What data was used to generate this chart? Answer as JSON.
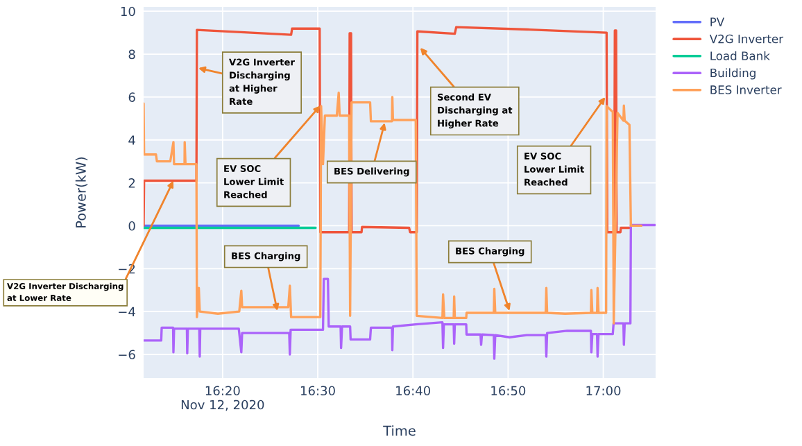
{
  "chart_data": {
    "type": "line",
    "xlabel": "Time",
    "ylabel": "Power(kW)",
    "grid": true,
    "legend": "top right",
    "line_style": "solid",
    "marker": "none",
    "xlim": [
      "2020-11-12T16:11:42",
      "2020-11-12T17:05:30"
    ],
    "xticks": [
      {
        "value": "2020-11-12T16:20",
        "label": "16:20\nNov 12, 2020"
      },
      {
        "value": "2020-11-12T16:30",
        "label": "16:30"
      },
      {
        "value": "2020-11-12T16:40",
        "label": "16:40"
      },
      {
        "value": "2020-11-12T16:50",
        "label": "16:50"
      },
      {
        "value": "2020-11-12T17:00",
        "label": "17:00"
      }
    ],
    "ylim": [
      -7.1,
      10.2
    ],
    "yticks": [
      {
        "value": -6,
        "label": "−6"
      },
      {
        "value": -4,
        "label": "−4"
      },
      {
        "value": -2,
        "label": "−2"
      },
      0,
      2,
      4,
      6,
      8,
      10
    ],
    "series": [
      {
        "name": "PV",
        "color": "#636efa",
        "x": [
          "2020-11-12T16:11:42",
          "2020-11-12T16:28:00"
        ],
        "values": [
          0,
          0
        ]
      },
      {
        "name": "V2G Inverter",
        "color": "#ef553b",
        "x": [
          "2020-11-12T16:11:42",
          "2020-11-12T16:11:45",
          "2020-11-12T16:17:15",
          "2020-11-12T16:17:18",
          "2020-11-12T16:23:00",
          "2020-11-12T16:27:12",
          "2020-11-12T16:27:18",
          "2020-11-12T16:30:12",
          "2020-11-12T16:30:16",
          "2020-11-12T16:33:18",
          "2020-11-12T16:33:21",
          "2020-11-12T16:33:30",
          "2020-11-12T16:33:33",
          "2020-11-12T16:34:36",
          "2020-11-12T16:34:39",
          "2020-11-12T16:39:36",
          "2020-11-12T16:39:42",
          "2020-11-12T16:40:24",
          "2020-11-12T16:40:28",
          "2020-11-12T16:44:24",
          "2020-11-12T16:44:33",
          "2020-11-12T16:52:00",
          "2020-11-12T17:00:21",
          "2020-11-12T17:00:25",
          "2020-11-12T17:01:09",
          "2020-11-12T17:01:13",
          "2020-11-12T17:01:21",
          "2020-11-12T17:01:24",
          "2020-11-12T17:01:48",
          "2020-11-12T17:01:51",
          "2020-11-12T17:02:45"
        ],
        "values": [
          0,
          2.1,
          2.1,
          9.13,
          9.0,
          8.9,
          9.19,
          9.19,
          -0.3,
          -0.3,
          8.97,
          8.97,
          -0.3,
          -0.3,
          -0.06,
          -0.1,
          -0.3,
          -0.3,
          9.06,
          8.95,
          9.26,
          9.15,
          9.0,
          -0.3,
          -0.3,
          9.1,
          9.1,
          -0.3,
          -0.3,
          -0.1,
          -0.1
        ]
      },
      {
        "name": "Load Bank",
        "color": "#00cc96",
        "x": [
          "2020-11-12T16:11:42",
          "2020-11-12T16:29:46"
        ],
        "values": [
          -0.1,
          -0.1
        ]
      },
      {
        "name": "Building",
        "color": "#ab63fa",
        "x": [
          "2020-11-12T16:11:42",
          "2020-11-12T16:13:33",
          "2020-11-12T16:13:36",
          "2020-11-12T16:14:48",
          "2020-11-12T16:14:50",
          "2020-11-12T16:14:54",
          "2020-11-12T16:16:15",
          "2020-11-12T16:16:17",
          "2020-11-12T16:16:21",
          "2020-11-12T16:17:33",
          "2020-11-12T16:17:36",
          "2020-11-12T16:17:39",
          "2020-11-12T16:21:42",
          "2020-11-12T16:21:45",
          "2020-11-12T16:21:58",
          "2020-11-12T16:22:03",
          "2020-11-12T16:27:00",
          "2020-11-12T16:27:04",
          "2020-11-12T16:27:09",
          "2020-11-12T16:30:33",
          "2020-11-12T16:30:38",
          "2020-11-12T16:31:04",
          "2020-11-12T16:31:09",
          "2020-11-12T16:32:24",
          "2020-11-12T16:32:27",
          "2020-11-12T16:32:33",
          "2020-11-12T16:33:24",
          "2020-11-12T16:33:27",
          "2020-11-12T16:35:30",
          "2020-11-12T16:35:35",
          "2020-11-12T16:37:48",
          "2020-11-12T16:37:50",
          "2020-11-12T16:37:54",
          "2020-11-12T16:40:18",
          "2020-11-12T16:43:06",
          "2020-11-12T16:43:10",
          "2020-11-12T16:43:15",
          "2020-11-12T16:44:17",
          "2020-11-12T16:44:20",
          "2020-11-12T16:44:24",
          "2020-11-12T16:45:36",
          "2020-11-12T16:45:38",
          "2020-11-12T16:47:06",
          "2020-11-12T16:47:10",
          "2020-11-12T16:47:15",
          "2020-11-12T16:48:30",
          "2020-11-12T16:48:33",
          "2020-11-12T16:48:39",
          "2020-11-12T16:50:09",
          "2020-11-12T16:51:58",
          "2020-11-12T16:53:57",
          "2020-11-12T16:54:01",
          "2020-11-12T16:54:06",
          "2020-11-12T16:56:12",
          "2020-11-12T16:58:42",
          "2020-11-12T16:58:45",
          "2020-11-12T16:58:51",
          "2020-11-12T16:59:21",
          "2020-11-12T16:59:24",
          "2020-11-12T16:59:30",
          "2020-11-12T17:01:00",
          "2020-11-12T17:01:05",
          "2020-11-12T17:02:07",
          "2020-11-12T17:02:10",
          "2020-11-12T17:02:15",
          "2020-11-12T17:02:51",
          "2020-11-12T17:02:54",
          "2020-11-12T17:05:27"
        ],
        "values": [
          -5.35,
          -5.35,
          -4.75,
          -4.75,
          -5.9,
          -4.8,
          -4.8,
          -5.95,
          -4.8,
          -4.8,
          -6.1,
          -4.8,
          -4.8,
          -5.0,
          -5.9,
          -5.0,
          -5.0,
          -6.0,
          -4.85,
          -4.85,
          -2.48,
          -2.48,
          -4.7,
          -4.7,
          -5.7,
          -4.7,
          -4.7,
          -5.3,
          -5.3,
          -4.75,
          -4.75,
          -5.8,
          -4.7,
          -4.6,
          -4.5,
          -5.7,
          -4.6,
          -4.6,
          -5.5,
          -4.6,
          -4.6,
          -5.07,
          -5.07,
          -5.55,
          -5.07,
          -5.1,
          -6.2,
          -5.1,
          -5.2,
          -5.1,
          -5.1,
          -6.1,
          -5.0,
          -4.9,
          -4.9,
          -5.9,
          -5.05,
          -5.05,
          -6.1,
          -5.05,
          -5.05,
          -4.55,
          -4.55,
          -5.55,
          -4.55,
          -4.55,
          0.03,
          0.03
        ]
      },
      {
        "name": "BES Inverter",
        "color": "#ffa15a",
        "x": [
          "2020-11-12T16:11:42",
          "2020-11-12T16:11:45",
          "2020-11-12T16:13:00",
          "2020-11-12T16:13:06",
          "2020-11-12T16:14:30",
          "2020-11-12T16:14:50",
          "2020-11-12T16:14:54",
          "2020-11-12T16:16:00",
          "2020-11-12T16:16:01",
          "2020-11-12T16:16:06",
          "2020-11-12T16:17:15",
          "2020-11-12T16:17:18",
          "2020-11-12T16:17:30",
          "2020-11-12T16:17:36",
          "2020-11-12T16:19:30",
          "2020-11-12T16:21:45",
          "2020-11-12T16:21:58",
          "2020-11-12T16:22:03",
          "2020-11-12T16:26:54",
          "2020-11-12T16:27:04",
          "2020-11-12T16:27:12",
          "2020-11-12T16:30:16",
          "2020-11-12T16:30:21",
          "2020-11-12T16:30:33",
          "2020-11-12T16:30:45",
          "2020-11-12T16:32:00",
          "2020-11-12T16:32:12",
          "2020-11-12T16:32:18",
          "2020-11-12T16:33:18",
          "2020-11-12T16:33:24",
          "2020-11-12T16:33:33",
          "2020-11-12T16:35:30",
          "2020-11-12T16:35:35",
          "2020-11-12T16:37:48",
          "2020-11-12T16:37:50",
          "2020-11-12T16:37:54",
          "2020-11-12T16:40:18",
          "2020-11-12T16:40:24",
          "2020-11-12T16:43:06",
          "2020-11-12T16:43:10",
          "2020-11-12T16:43:18",
          "2020-11-12T16:44:17",
          "2020-11-12T16:44:20",
          "2020-11-12T16:44:24",
          "2020-11-12T16:45:36",
          "2020-11-12T16:45:38",
          "2020-11-12T16:48:30",
          "2020-11-12T16:48:33",
          "2020-11-12T16:48:39",
          "2020-11-12T16:53:57",
          "2020-11-12T16:54:01",
          "2020-11-12T16:54:06",
          "2020-11-12T16:56:00",
          "2020-11-12T16:58:42",
          "2020-11-12T16:58:45",
          "2020-11-12T16:58:51",
          "2020-11-12T16:59:21",
          "2020-11-12T16:59:24",
          "2020-11-12T16:59:30",
          "2020-11-12T17:00:18",
          "2020-11-12T17:00:21",
          "2020-11-12T17:01:00",
          "2020-11-12T17:01:06",
          "2020-11-12T17:01:30",
          "2020-11-12T17:02:07",
          "2020-11-12T17:02:10",
          "2020-11-12T17:02:15",
          "2020-11-12T17:02:45",
          "2020-11-12T17:02:54",
          "2020-11-12T17:04:00"
        ],
        "values": [
          5.7,
          3.32,
          3.32,
          3.0,
          3.0,
          3.9,
          2.87,
          2.87,
          3.9,
          2.87,
          2.87,
          -4.26,
          -2.9,
          -4.0,
          -4.1,
          -4.0,
          -3.03,
          -3.8,
          -3.8,
          -2.8,
          -4.26,
          -4.26,
          5.58,
          2.87,
          5.13,
          5.13,
          6.2,
          5.13,
          5.13,
          -4.2,
          5.75,
          5.75,
          4.87,
          4.87,
          6.0,
          4.93,
          4.93,
          -4.2,
          -4.3,
          -3.2,
          -4.3,
          -4.3,
          -3.3,
          -4.3,
          -4.3,
          -4.06,
          -4.06,
          -2.94,
          -4.06,
          -4.06,
          -2.9,
          -4.06,
          -4.1,
          -4.06,
          -3.0,
          -4.06,
          -4.06,
          -2.9,
          -4.06,
          -4.06,
          5.58,
          5.3,
          -4.55,
          5.26,
          4.9,
          5.6,
          4.9,
          4.7,
          0.0,
          0.0
        ]
      }
    ],
    "annotations": [
      {
        "text": "V2G Inverter Discharging\nat Lower Rate",
        "x": "2020-11-12T16:14:50",
        "y": 2.1
      },
      {
        "text": "V2G Inverter\nDischarging\nat Higher\nRate",
        "x": "2020-11-12T16:17:27",
        "y": 7.35
      },
      {
        "text": "EV SOC\nLower Limit\nReached",
        "x": "2020-11-12T16:30:16",
        "y": 5.6
      },
      {
        "text": "BES Delivering",
        "x": "2020-11-12T16:37:02",
        "y": 4.8
      },
      {
        "text": "Second EV\nDischarging at\nHigher Rate",
        "x": "2020-11-12T16:40:46",
        "y": 8.3
      },
      {
        "text": "EV SOC\nLower Limit\nReached",
        "x": "2020-11-12T17:00:12",
        "y": 6.0
      },
      {
        "text": "BES Charging",
        "x": "2020-11-12T16:25:45",
        "y": -3.97
      },
      {
        "text": "BES Charging",
        "x": "2020-11-12T16:50:09",
        "y": -3.97
      }
    ]
  }
}
